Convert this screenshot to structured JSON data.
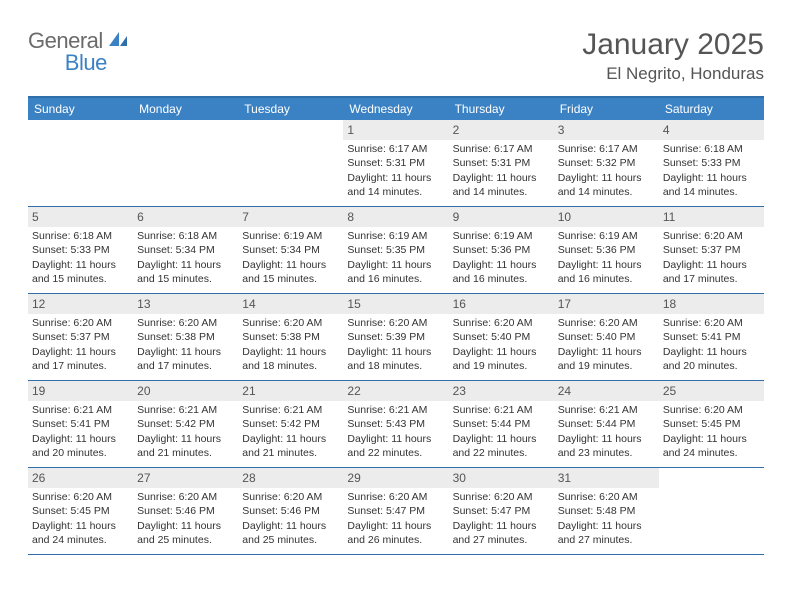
{
  "logo": {
    "part1": "General",
    "part2": "Blue"
  },
  "title": "January 2025",
  "location": "El Negrito, Honduras",
  "colors": {
    "header_bg": "#3b82c4",
    "header_border": "#2f6ea8",
    "daynum_bg": "#ececec",
    "text": "#333333",
    "muted": "#555555",
    "logo_gray": "#6b6b6b",
    "logo_blue": "#3b82c4"
  },
  "day_headers": [
    "Sunday",
    "Monday",
    "Tuesday",
    "Wednesday",
    "Thursday",
    "Friday",
    "Saturday"
  ],
  "weeks": [
    [
      {
        "empty": true
      },
      {
        "empty": true
      },
      {
        "empty": true
      },
      {
        "num": "1",
        "sunrise": "Sunrise: 6:17 AM",
        "sunset": "Sunset: 5:31 PM",
        "day1": "Daylight: 11 hours",
        "day2": "and 14 minutes."
      },
      {
        "num": "2",
        "sunrise": "Sunrise: 6:17 AM",
        "sunset": "Sunset: 5:31 PM",
        "day1": "Daylight: 11 hours",
        "day2": "and 14 minutes."
      },
      {
        "num": "3",
        "sunrise": "Sunrise: 6:17 AM",
        "sunset": "Sunset: 5:32 PM",
        "day1": "Daylight: 11 hours",
        "day2": "and 14 minutes."
      },
      {
        "num": "4",
        "sunrise": "Sunrise: 6:18 AM",
        "sunset": "Sunset: 5:33 PM",
        "day1": "Daylight: 11 hours",
        "day2": "and 14 minutes."
      }
    ],
    [
      {
        "num": "5",
        "sunrise": "Sunrise: 6:18 AM",
        "sunset": "Sunset: 5:33 PM",
        "day1": "Daylight: 11 hours",
        "day2": "and 15 minutes."
      },
      {
        "num": "6",
        "sunrise": "Sunrise: 6:18 AM",
        "sunset": "Sunset: 5:34 PM",
        "day1": "Daylight: 11 hours",
        "day2": "and 15 minutes."
      },
      {
        "num": "7",
        "sunrise": "Sunrise: 6:19 AM",
        "sunset": "Sunset: 5:34 PM",
        "day1": "Daylight: 11 hours",
        "day2": "and 15 minutes."
      },
      {
        "num": "8",
        "sunrise": "Sunrise: 6:19 AM",
        "sunset": "Sunset: 5:35 PM",
        "day1": "Daylight: 11 hours",
        "day2": "and 16 minutes."
      },
      {
        "num": "9",
        "sunrise": "Sunrise: 6:19 AM",
        "sunset": "Sunset: 5:36 PM",
        "day1": "Daylight: 11 hours",
        "day2": "and 16 minutes."
      },
      {
        "num": "10",
        "sunrise": "Sunrise: 6:19 AM",
        "sunset": "Sunset: 5:36 PM",
        "day1": "Daylight: 11 hours",
        "day2": "and 16 minutes."
      },
      {
        "num": "11",
        "sunrise": "Sunrise: 6:20 AM",
        "sunset": "Sunset: 5:37 PM",
        "day1": "Daylight: 11 hours",
        "day2": "and 17 minutes."
      }
    ],
    [
      {
        "num": "12",
        "sunrise": "Sunrise: 6:20 AM",
        "sunset": "Sunset: 5:37 PM",
        "day1": "Daylight: 11 hours",
        "day2": "and 17 minutes."
      },
      {
        "num": "13",
        "sunrise": "Sunrise: 6:20 AM",
        "sunset": "Sunset: 5:38 PM",
        "day1": "Daylight: 11 hours",
        "day2": "and 17 minutes."
      },
      {
        "num": "14",
        "sunrise": "Sunrise: 6:20 AM",
        "sunset": "Sunset: 5:38 PM",
        "day1": "Daylight: 11 hours",
        "day2": "and 18 minutes."
      },
      {
        "num": "15",
        "sunrise": "Sunrise: 6:20 AM",
        "sunset": "Sunset: 5:39 PM",
        "day1": "Daylight: 11 hours",
        "day2": "and 18 minutes."
      },
      {
        "num": "16",
        "sunrise": "Sunrise: 6:20 AM",
        "sunset": "Sunset: 5:40 PM",
        "day1": "Daylight: 11 hours",
        "day2": "and 19 minutes."
      },
      {
        "num": "17",
        "sunrise": "Sunrise: 6:20 AM",
        "sunset": "Sunset: 5:40 PM",
        "day1": "Daylight: 11 hours",
        "day2": "and 19 minutes."
      },
      {
        "num": "18",
        "sunrise": "Sunrise: 6:20 AM",
        "sunset": "Sunset: 5:41 PM",
        "day1": "Daylight: 11 hours",
        "day2": "and 20 minutes."
      }
    ],
    [
      {
        "num": "19",
        "sunrise": "Sunrise: 6:21 AM",
        "sunset": "Sunset: 5:41 PM",
        "day1": "Daylight: 11 hours",
        "day2": "and 20 minutes."
      },
      {
        "num": "20",
        "sunrise": "Sunrise: 6:21 AM",
        "sunset": "Sunset: 5:42 PM",
        "day1": "Daylight: 11 hours",
        "day2": "and 21 minutes."
      },
      {
        "num": "21",
        "sunrise": "Sunrise: 6:21 AM",
        "sunset": "Sunset: 5:42 PM",
        "day1": "Daylight: 11 hours",
        "day2": "and 21 minutes."
      },
      {
        "num": "22",
        "sunrise": "Sunrise: 6:21 AM",
        "sunset": "Sunset: 5:43 PM",
        "day1": "Daylight: 11 hours",
        "day2": "and 22 minutes."
      },
      {
        "num": "23",
        "sunrise": "Sunrise: 6:21 AM",
        "sunset": "Sunset: 5:44 PM",
        "day1": "Daylight: 11 hours",
        "day2": "and 22 minutes."
      },
      {
        "num": "24",
        "sunrise": "Sunrise: 6:21 AM",
        "sunset": "Sunset: 5:44 PM",
        "day1": "Daylight: 11 hours",
        "day2": "and 23 minutes."
      },
      {
        "num": "25",
        "sunrise": "Sunrise: 6:20 AM",
        "sunset": "Sunset: 5:45 PM",
        "day1": "Daylight: 11 hours",
        "day2": "and 24 minutes."
      }
    ],
    [
      {
        "num": "26",
        "sunrise": "Sunrise: 6:20 AM",
        "sunset": "Sunset: 5:45 PM",
        "day1": "Daylight: 11 hours",
        "day2": "and 24 minutes."
      },
      {
        "num": "27",
        "sunrise": "Sunrise: 6:20 AM",
        "sunset": "Sunset: 5:46 PM",
        "day1": "Daylight: 11 hours",
        "day2": "and 25 minutes."
      },
      {
        "num": "28",
        "sunrise": "Sunrise: 6:20 AM",
        "sunset": "Sunset: 5:46 PM",
        "day1": "Daylight: 11 hours",
        "day2": "and 25 minutes."
      },
      {
        "num": "29",
        "sunrise": "Sunrise: 6:20 AM",
        "sunset": "Sunset: 5:47 PM",
        "day1": "Daylight: 11 hours",
        "day2": "and 26 minutes."
      },
      {
        "num": "30",
        "sunrise": "Sunrise: 6:20 AM",
        "sunset": "Sunset: 5:47 PM",
        "day1": "Daylight: 11 hours",
        "day2": "and 27 minutes."
      },
      {
        "num": "31",
        "sunrise": "Sunrise: 6:20 AM",
        "sunset": "Sunset: 5:48 PM",
        "day1": "Daylight: 11 hours",
        "day2": "and 27 minutes."
      },
      {
        "empty": true
      }
    ]
  ]
}
